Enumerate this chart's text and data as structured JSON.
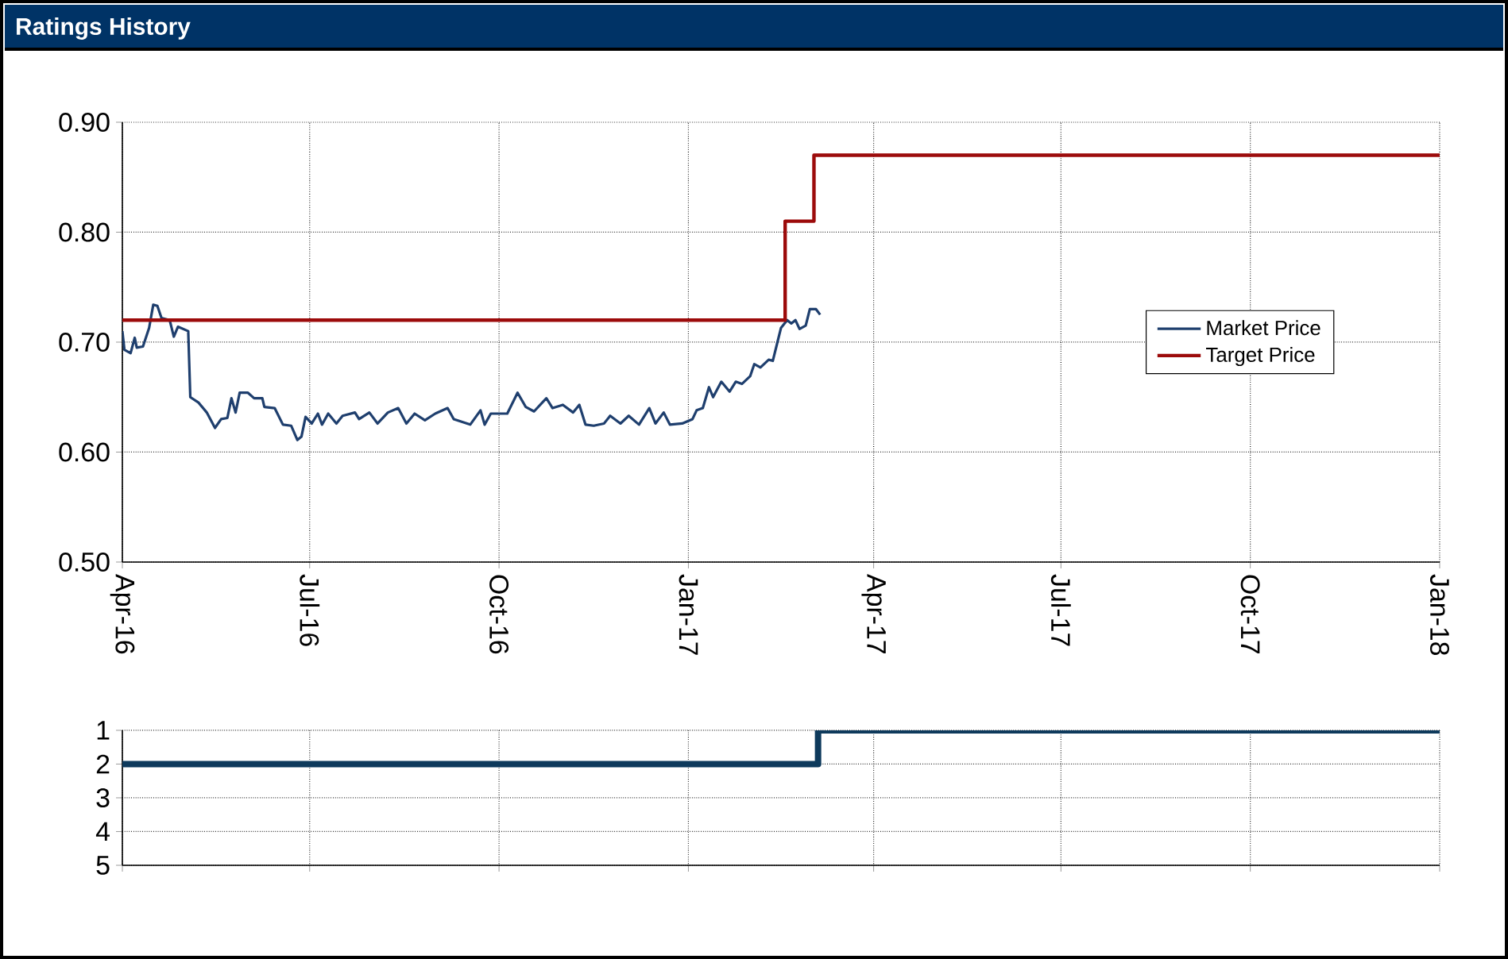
{
  "chart_data": [
    {
      "type": "line",
      "title": "Ratings History",
      "xlim": [
        "2016-04-01",
        "2018-01-01"
      ],
      "xticks": [
        {
          "value": "2016-04-01",
          "label": "Apr-16"
        },
        {
          "value": "2016-07-01",
          "label": "Jul-16"
        },
        {
          "value": "2016-10-01",
          "label": "Oct-16"
        },
        {
          "value": "2017-01-01",
          "label": "Jan-17"
        },
        {
          "value": "2017-04-01",
          "label": "Apr-17"
        },
        {
          "value": "2017-07-01",
          "label": "Jul-17"
        },
        {
          "value": "2017-10-01",
          "label": "Oct-17"
        },
        {
          "value": "2018-01-01",
          "label": "Jan-18"
        }
      ],
      "ylim": [
        0.5,
        0.9
      ],
      "yticks": [
        {
          "value": 0.5,
          "label": "0.50"
        },
        {
          "value": 0.6,
          "label": "0.60"
        },
        {
          "value": 0.7,
          "label": "0.70"
        },
        {
          "value": 0.8,
          "label": "0.80"
        },
        {
          "value": 0.9,
          "label": "0.90"
        }
      ],
      "grid": true,
      "legend": "right",
      "series": [
        {
          "name": "Market Price",
          "color": "#1f3f6e",
          "x": [
            "2016-04-01",
            "2016-04-02",
            "2016-04-05",
            "2016-04-07",
            "2016-04-08",
            "2016-04-11",
            "2016-04-14",
            "2016-04-16",
            "2016-04-18",
            "2016-04-20",
            "2016-04-24",
            "2016-04-26",
            "2016-04-28",
            "2016-05-03",
            "2016-05-04",
            "2016-05-08",
            "2016-05-12",
            "2016-05-16",
            "2016-05-19",
            "2016-05-22",
            "2016-05-24",
            "2016-05-26",
            "2016-05-28",
            "2016-06-01",
            "2016-06-04",
            "2016-06-08",
            "2016-06-09",
            "2016-06-14",
            "2016-06-18",
            "2016-06-22",
            "2016-06-25",
            "2016-06-27",
            "2016-06-29",
            "2016-07-02",
            "2016-07-05",
            "2016-07-07",
            "2016-07-10",
            "2016-07-14",
            "2016-07-17",
            "2016-07-23",
            "2016-07-25",
            "2016-07-30",
            "2016-08-03",
            "2016-08-08",
            "2016-08-13",
            "2016-08-17",
            "2016-08-21",
            "2016-08-26",
            "2016-08-31",
            "2016-09-06",
            "2016-09-09",
            "2016-09-17",
            "2016-09-22",
            "2016-09-24",
            "2016-09-27",
            "2016-10-05",
            "2016-10-10",
            "2016-10-14",
            "2016-10-18",
            "2016-10-22",
            "2016-10-24",
            "2016-10-27",
            "2016-11-01",
            "2016-11-06",
            "2016-11-09",
            "2016-11-12",
            "2016-11-16",
            "2016-11-21",
            "2016-11-24",
            "2016-11-29",
            "2016-12-03",
            "2016-12-08",
            "2016-12-13",
            "2016-12-16",
            "2016-12-20",
            "2016-12-23",
            "2016-12-29",
            "2017-01-03",
            "2017-01-05",
            "2017-01-08",
            "2017-01-11",
            "2017-01-13",
            "2017-01-17",
            "2017-01-21",
            "2017-01-24",
            "2017-01-27",
            "2017-01-31",
            "2017-02-02",
            "2017-02-05",
            "2017-02-09",
            "2017-02-11",
            "2017-02-13",
            "2017-02-15",
            "2017-02-18",
            "2017-02-20",
            "2017-02-22",
            "2017-02-24",
            "2017-02-27",
            "2017-03-01",
            "2017-03-04",
            "2017-03-06"
          ],
          "values": [
            0.71,
            0.693,
            0.69,
            0.704,
            0.695,
            0.696,
            0.713,
            0.734,
            0.733,
            0.722,
            0.72,
            0.705,
            0.714,
            0.71,
            0.65,
            0.645,
            0.636,
            0.622,
            0.63,
            0.631,
            0.649,
            0.636,
            0.654,
            0.654,
            0.649,
            0.649,
            0.641,
            0.64,
            0.625,
            0.624,
            0.611,
            0.614,
            0.632,
            0.626,
            0.635,
            0.625,
            0.635,
            0.626,
            0.633,
            0.636,
            0.63,
            0.636,
            0.626,
            0.636,
            0.64,
            0.626,
            0.635,
            0.629,
            0.635,
            0.64,
            0.63,
            0.625,
            0.638,
            0.625,
            0.635,
            0.635,
            0.654,
            0.641,
            0.637,
            0.645,
            0.649,
            0.64,
            0.643,
            0.636,
            0.643,
            0.625,
            0.624,
            0.626,
            0.633,
            0.626,
            0.633,
            0.625,
            0.64,
            0.626,
            0.636,
            0.625,
            0.626,
            0.63,
            0.638,
            0.64,
            0.659,
            0.65,
            0.664,
            0.655,
            0.664,
            0.662,
            0.669,
            0.68,
            0.677,
            0.684,
            0.683,
            0.698,
            0.713,
            0.72,
            0.717,
            0.72,
            0.712,
            0.715,
            0.73,
            0.73,
            0.725
          ]
        },
        {
          "name": "Target Price",
          "type": "step",
          "color": "#9c0b0b",
          "x": [
            "2016-04-01",
            "2017-02-17",
            "2017-03-03",
            "2018-01-01"
          ],
          "values": [
            0.72,
            0.81,
            0.87,
            0.87
          ]
        }
      ]
    },
    {
      "type": "step",
      "tick_labels": "y",
      "xlim": [
        "2016-04-01",
        "2018-01-01"
      ],
      "xticks": [
        {
          "value": "2016-04-01",
          "label": null
        },
        {
          "value": "2016-07-01",
          "label": null
        },
        {
          "value": "2016-10-01",
          "label": null
        },
        {
          "value": "2017-01-01",
          "label": null
        },
        {
          "value": "2017-04-01",
          "label": null
        },
        {
          "value": "2017-07-01",
          "label": null
        },
        {
          "value": "2017-10-01",
          "label": null
        },
        {
          "value": "2018-01-01",
          "label": null
        }
      ],
      "ylim": [
        5,
        1
      ],
      "yticks": [
        1,
        2,
        3,
        4,
        5
      ],
      "grid": true,
      "series": [
        {
          "color": "#0e3a5c",
          "x": [
            "2016-04-01",
            "2017-03-05",
            "2018-01-01"
          ],
          "values": [
            2,
            1,
            1
          ]
        }
      ]
    }
  ]
}
